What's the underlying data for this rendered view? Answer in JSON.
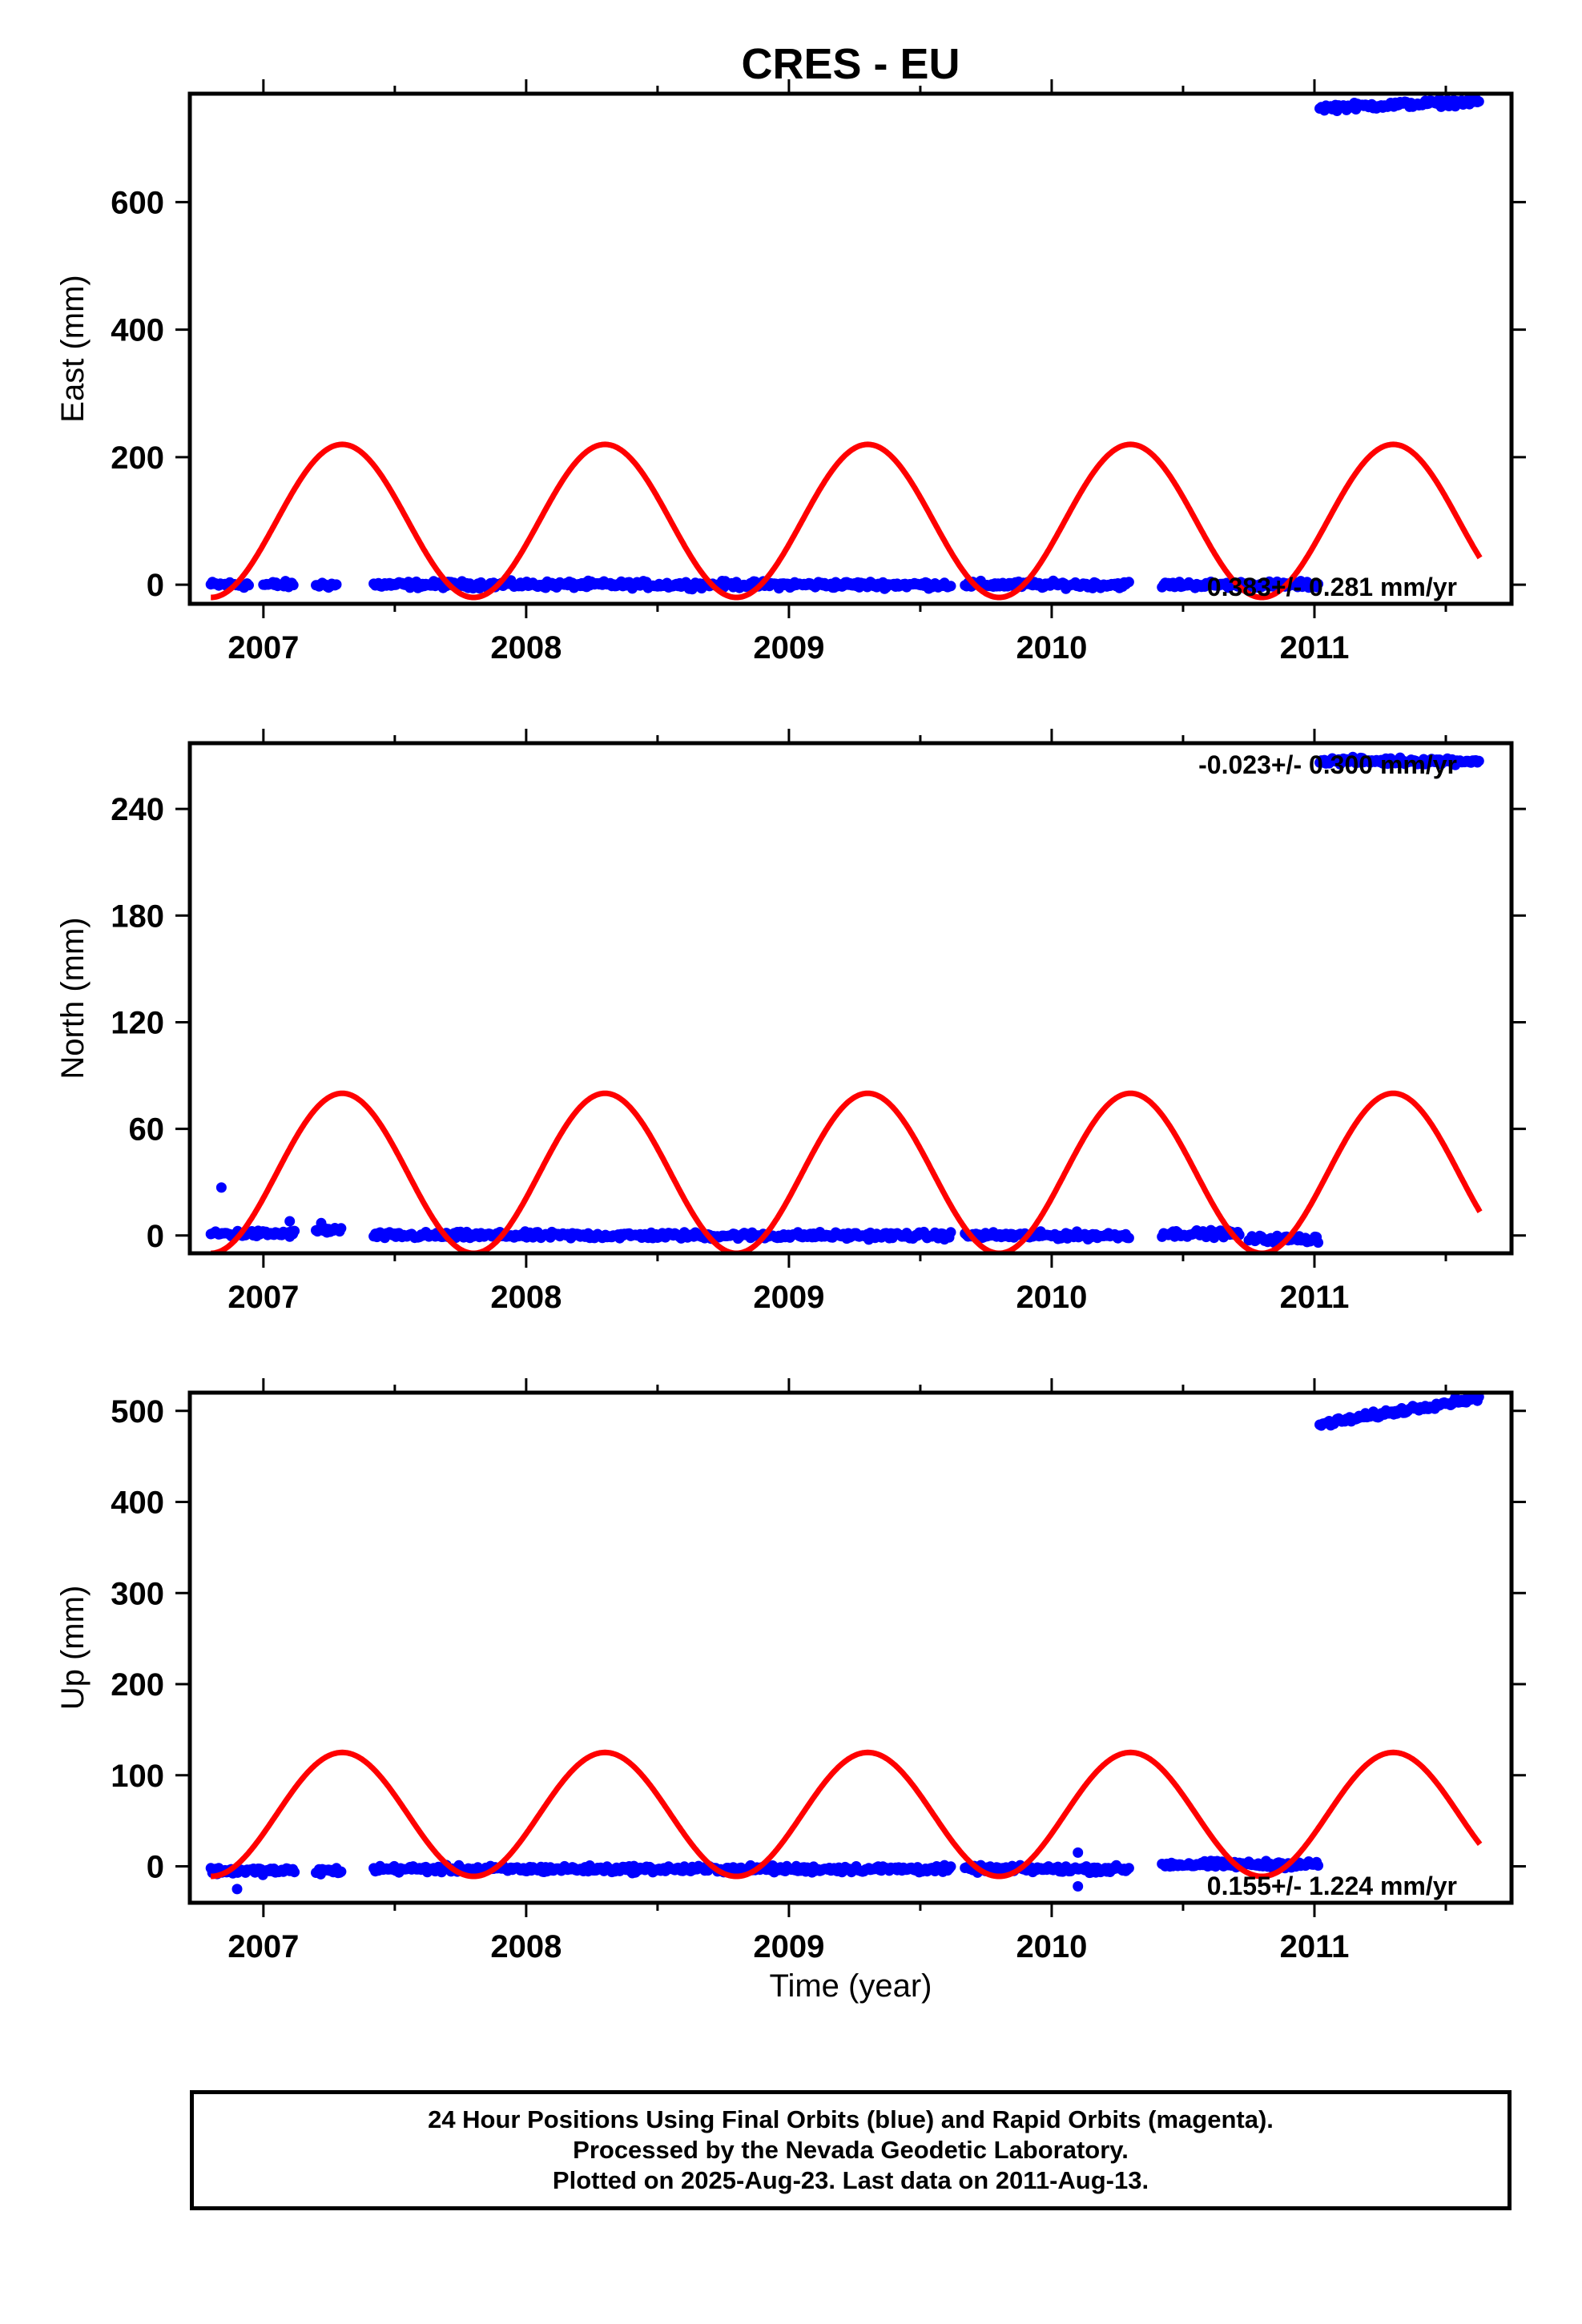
{
  "title": "CRES - EU",
  "xlabel": "Time (year)",
  "footer": {
    "line1": "24 Hour Positions Using Final Orbits (blue) and Rapid Orbits (magenta).",
    "line2": "Processed by the Nevada Geodetic Laboratory.",
    "line3": "Plotted on 2025-Aug-23. Last data on 2011-Aug-13."
  },
  "colors": {
    "data": "#0000ff",
    "model": "#ff0000",
    "frame": "#000000"
  },
  "chart_data": [
    {
      "type": "scatter",
      "component": "East",
      "ylabel": "East (mm)",
      "xlim": [
        2006.72,
        2011.75
      ],
      "ylim": [
        -30,
        770
      ],
      "x_ticks": [
        2007,
        2008,
        2009,
        2010,
        2011
      ],
      "y_ticks": [
        0,
        200,
        400,
        600
      ],
      "rate_text": "0.383+/- 0.281 mm/yr",
      "segments": [
        {
          "x": [
            2006.8,
            2006.95
          ],
          "y": 0
        },
        {
          "x": [
            2007.0,
            2007.12
          ],
          "y": 0
        },
        {
          "x": [
            2007.2,
            2007.28
          ],
          "y": 0
        },
        {
          "x": [
            2007.42,
            2009.62
          ],
          "y": 0
        },
        {
          "x": [
            2009.67,
            2010.3
          ],
          "y": 0
        },
        {
          "x": [
            2010.42,
            2011.02
          ],
          "y": 0
        },
        {
          "x": [
            2011.02,
            2011.63
          ],
          "y": 748,
          "slope": 10
        }
      ],
      "model": {
        "mean": 100,
        "amplitude": 120,
        "peak": 2007.3,
        "x_end": 2011.63
      }
    },
    {
      "type": "scatter",
      "component": "North",
      "ylabel": "North (mm)",
      "xlim": [
        2006.72,
        2011.75
      ],
      "ylim": [
        -10,
        277
      ],
      "x_ticks": [
        2007,
        2008,
        2009,
        2010,
        2011
      ],
      "y_ticks": [
        0,
        60,
        120,
        180,
        240
      ],
      "rate_text": "-0.023+/- 0.300 mm/yr",
      "segments": [
        {
          "x": [
            2006.8,
            2007.12
          ],
          "y": 1
        },
        {
          "x": [
            2007.2,
            2007.3
          ],
          "y": 3
        },
        {
          "x": [
            2007.42,
            2009.62
          ],
          "y": 0
        },
        {
          "x": [
            2009.67,
            2010.3
          ],
          "y": 0
        },
        {
          "x": [
            2010.42,
            2010.72
          ],
          "y": 1
        },
        {
          "x": [
            2010.75,
            2011.02
          ],
          "y": -2
        },
        {
          "x": [
            2011.02,
            2011.63
          ],
          "y": 267
        }
      ],
      "outliers": [
        {
          "x": 2006.84,
          "y": 27
        },
        {
          "x": 2007.1,
          "y": 8
        },
        {
          "x": 2007.22,
          "y": 7
        }
      ],
      "model": {
        "mean": 35,
        "amplitude": 45,
        "peak": 2007.3,
        "x_end": 2011.63
      }
    },
    {
      "type": "scatter",
      "component": "Up",
      "ylabel": "Up (mm)",
      "xlim": [
        2006.72,
        2011.75
      ],
      "ylim": [
        -40,
        520
      ],
      "x_ticks": [
        2007,
        2008,
        2009,
        2010,
        2011
      ],
      "y_ticks": [
        0,
        100,
        200,
        300,
        400,
        500
      ],
      "rate_text": "0.155+/- 1.224 mm/yr",
      "segments": [
        {
          "x": [
            2006.8,
            2007.12
          ],
          "y": -5
        },
        {
          "x": [
            2007.2,
            2007.3
          ],
          "y": -5
        },
        {
          "x": [
            2007.42,
            2009.62
          ],
          "y": -3
        },
        {
          "x": [
            2009.67,
            2010.3
          ],
          "y": -3
        },
        {
          "x": [
            2010.42,
            2011.02
          ],
          "y": 2
        },
        {
          "x": [
            2011.02,
            2011.63
          ],
          "y": 485,
          "slope": 30
        }
      ],
      "outliers": [
        {
          "x": 2006.9,
          "y": -25
        },
        {
          "x": 2010.1,
          "y": -22
        },
        {
          "x": 2010.1,
          "y": 15
        }
      ],
      "model": {
        "mean": 57,
        "amplitude": 68,
        "peak": 2007.3,
        "x_end": 2011.63
      }
    }
  ]
}
